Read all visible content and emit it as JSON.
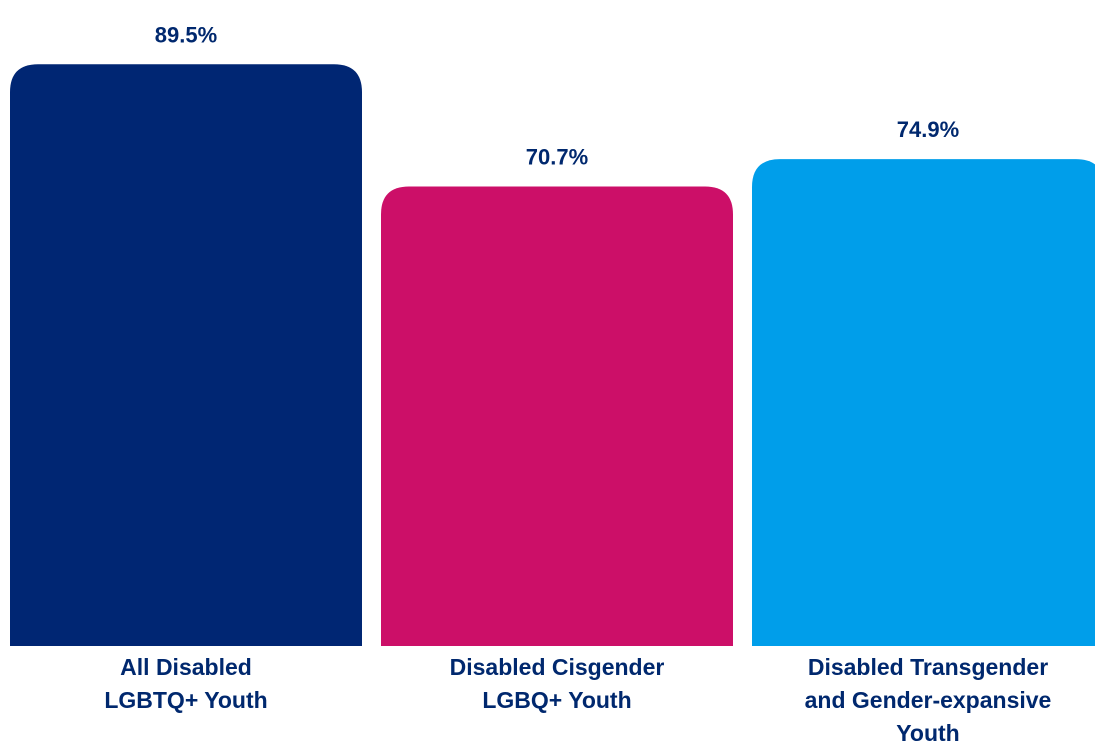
{
  "chart_data": {
    "type": "bar",
    "categories": [
      "All Disabled LGBTQ+ Youth",
      "Disabled Cisgender LGBQ+ Youth",
      "Disabled Transgender and Gender-expansive Youth"
    ],
    "category_lines": [
      [
        "All Disabled",
        "LGBTQ+ Youth"
      ],
      [
        "Disabled Cisgender",
        "LGBQ+ Youth"
      ],
      [
        "Disabled Transgender",
        "and Gender-expansive",
        "Youth"
      ]
    ],
    "values": [
      89.5,
      70.7,
      74.9
    ],
    "value_labels": [
      "89.5%",
      "70.7%",
      "74.9%"
    ],
    "colors": [
      "#002673",
      "#cc0f68",
      "#009eea"
    ],
    "label_color": "#00286e",
    "ylim": [
      0,
      100
    ],
    "grid": false,
    "legend": "none",
    "title": "",
    "xlabel": "",
    "ylabel": ""
  }
}
